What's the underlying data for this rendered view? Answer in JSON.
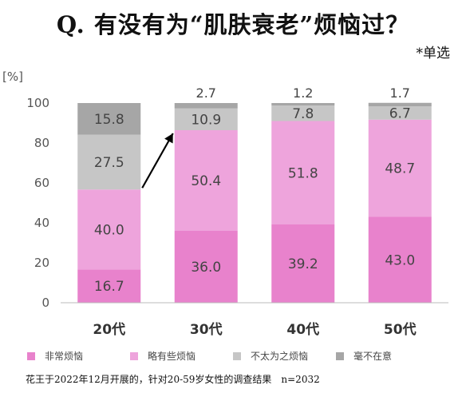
{
  "title": "Q. 有没有为“肌肤衰老”烦恼过？",
  "subtitle": "*单选",
  "source": "花王于2022年12月开展的，针对20-59岁女性的调查结果　n=2032",
  "chart_data": {
    "type": "bar",
    "stacked": true,
    "unit_label": "[%]",
    "ylim": [
      0,
      100
    ],
    "yticks": [
      0,
      20,
      40,
      60,
      80,
      100
    ],
    "categories": [
      "20代",
      "30代",
      "40代",
      "50代"
    ],
    "series": [
      {
        "name": "非常烦恼",
        "color": "#e882cc",
        "values": [
          16.7,
          36.0,
          39.2,
          43.0
        ],
        "labels": [
          "16.7",
          "36.0",
          "39.2",
          "43.0"
        ]
      },
      {
        "name": "略有些烦恼",
        "color": "#eea4dc",
        "values": [
          40.0,
          50.4,
          51.8,
          48.7
        ],
        "labels": [
          "40.0",
          "50.4",
          "51.8",
          "48.7"
        ]
      },
      {
        "name": "不太为之烦恼",
        "color": "#c6c6c6",
        "values": [
          27.5,
          10.9,
          7.8,
          6.7
        ],
        "labels": [
          "27.5",
          "10.9",
          "7.8",
          "6.7"
        ]
      },
      {
        "name": "毫不在意",
        "color": "#a6a6a6",
        "values": [
          15.8,
          2.7,
          1.2,
          1.7
        ],
        "labels": [
          "15.8",
          "2.7",
          "1.2",
          "1.7"
        ]
      }
    ],
    "annotation": "arrow from top of 20代 pink stack to top of 30代 pink stack",
    "legend_position": "bottom",
    "grid": false
  }
}
